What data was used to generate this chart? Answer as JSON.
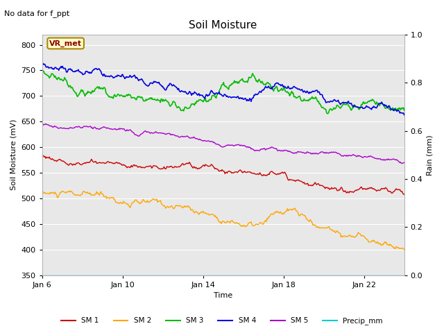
{
  "title": "Soil Moisture",
  "subtitle": "No data for f_ppt",
  "xlabel": "Time",
  "ylabel_left": "Soil Moisture (mV)",
  "ylabel_right": "Rain (mm)",
  "xlim_days": [
    0,
    18
  ],
  "ylim_left": [
    350,
    820
  ],
  "ylim_right": [
    0.0,
    1.0
  ],
  "yticks_left": [
    350,
    400,
    450,
    500,
    550,
    600,
    650,
    700,
    750,
    800
  ],
  "yticks_right": [
    0.0,
    0.2,
    0.4,
    0.6,
    0.8,
    1.0
  ],
  "xtick_labels": [
    "Jan 6",
    "Jan 10",
    "Jan 14",
    "Jan 18",
    "Jan 22"
  ],
  "xtick_positions": [
    0,
    4,
    8,
    12,
    16
  ],
  "annotation_text": "VR_met",
  "fig_bg_color": "#ffffff",
  "plot_bg_color": "#e8e8e8",
  "grid_color": "#ffffff",
  "sm1_color": "#cc0000",
  "sm2_color": "#ffa500",
  "sm3_color": "#00bb00",
  "sm4_color": "#0000dd",
  "sm5_color": "#aa00cc",
  "precip_color": "#00cccc",
  "legend_entries": [
    "SM 1",
    "SM 2",
    "SM 3",
    "SM 4",
    "SM 5",
    "Precip_mm"
  ],
  "title_fontsize": 11,
  "subtitle_fontsize": 8,
  "axis_label_fontsize": 8,
  "tick_fontsize": 8
}
